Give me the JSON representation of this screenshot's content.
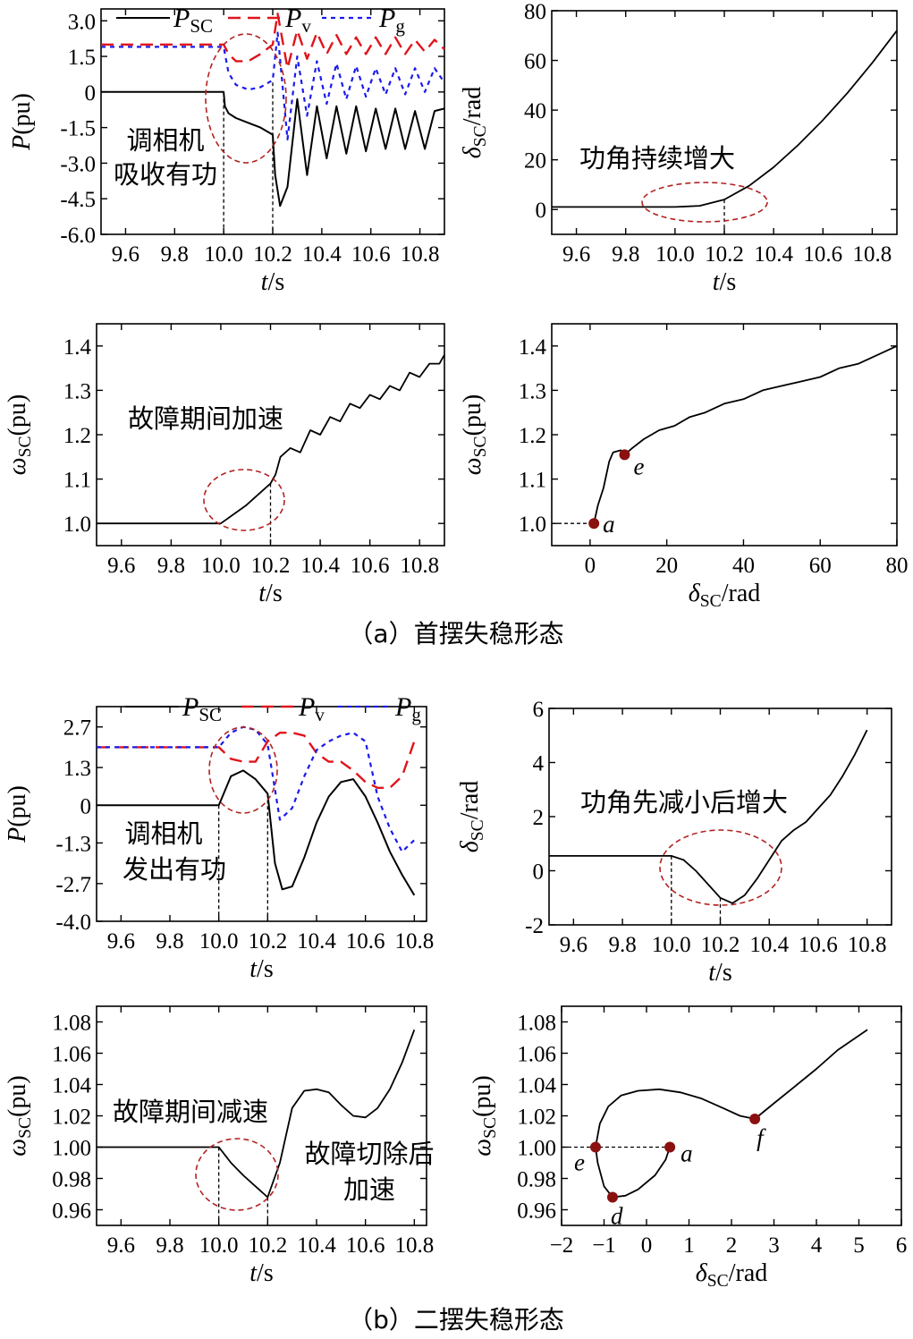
{
  "captions": {
    "a": "（a）首摆失稳形态",
    "b": "（b）二摆失稳形态"
  },
  "colors": {
    "psc": "#000000",
    "pv": "#e0141c",
    "pg": "#1a1aee",
    "marker": "#8b1010",
    "ellipse": "#b22222"
  },
  "legend": {
    "psc": "P_SC",
    "pv": "P_v",
    "pg": "P_g"
  },
  "chart_data": [
    {
      "id": "a1",
      "type": "line",
      "xlabel": "t/s",
      "ylabel": "P(pu)",
      "xlim": [
        9.5,
        10.9
      ],
      "ylim": [
        -6.0,
        3.5
      ],
      "xticks": [
        9.6,
        9.8,
        10.0,
        10.2,
        10.4,
        10.6,
        10.8
      ],
      "yticks": [
        3.0,
        1.5,
        0,
        -1.5,
        -3.0,
        -4.5,
        -6.0
      ],
      "yticklabels": [
        "3.0",
        "1.5",
        "0",
        "-1.5",
        "-3.0",
        "-4.5",
        "-6.0"
      ],
      "annotations": [
        "调相机",
        "吸收有功"
      ],
      "series": [
        {
          "name": "P_SC",
          "x": [
            9.5,
            10.0,
            10.005,
            10.02,
            10.05,
            10.1,
            10.15,
            10.2,
            10.21,
            10.23,
            10.26,
            10.3,
            10.34,
            10.38,
            10.42,
            10.46,
            10.5,
            10.54,
            10.58,
            10.62,
            10.66,
            10.7,
            10.74,
            10.78,
            10.82,
            10.86,
            10.9
          ],
          "y": [
            0,
            0,
            -0.6,
            -0.9,
            -1.1,
            -1.3,
            -1.5,
            -1.8,
            -3.5,
            -4.8,
            -4.0,
            -0.3,
            -3.5,
            -0.6,
            -2.8,
            -0.6,
            -2.6,
            -0.6,
            -2.5,
            -0.7,
            -2.4,
            -0.7,
            -2.4,
            -0.8,
            -2.4,
            -0.8,
            -0.7
          ]
        },
        {
          "name": "P_v",
          "x": [
            9.5,
            10.0,
            10.02,
            10.05,
            10.1,
            10.15,
            10.2,
            10.22,
            10.26,
            10.3,
            10.34,
            10.38,
            10.42,
            10.46,
            10.5,
            10.54,
            10.58,
            10.62,
            10.66,
            10.7,
            10.74,
            10.78,
            10.82,
            10.86,
            10.9
          ],
          "y": [
            2.0,
            2.0,
            1.6,
            1.3,
            1.3,
            1.6,
            2.0,
            3.3,
            1.0,
            2.6,
            1.4,
            2.5,
            1.6,
            2.4,
            1.6,
            2.3,
            1.6,
            2.3,
            1.6,
            2.3,
            1.6,
            2.2,
            1.7,
            2.2,
            1.8
          ]
        },
        {
          "name": "P_g",
          "x": [
            9.5,
            10.0,
            10.02,
            10.05,
            10.1,
            10.15,
            10.2,
            10.22,
            10.26,
            10.3,
            10.34,
            10.38,
            10.42,
            10.46,
            10.5,
            10.54,
            10.58,
            10.62,
            10.66,
            10.7,
            10.74,
            10.78,
            10.82,
            10.86,
            10.9
          ],
          "y": [
            1.9,
            1.9,
            0.8,
            0.3,
            0.1,
            0.2,
            0.5,
            2.5,
            -2.0,
            1.5,
            -1.0,
            1.3,
            -0.5,
            1.2,
            -0.3,
            1.1,
            -0.2,
            1.0,
            -0.1,
            1.0,
            -0.1,
            1.0,
            0.0,
            1.0,
            0.4
          ]
        }
      ]
    },
    {
      "id": "a2",
      "type": "line",
      "xlabel": "t/s",
      "ylabel": "δSC/rad",
      "xlim": [
        9.5,
        10.9
      ],
      "ylim": [
        -10,
        80
      ],
      "xticks": [
        9.6,
        9.8,
        10.0,
        10.2,
        10.4,
        10.6,
        10.8
      ],
      "yticks": [
        0,
        20,
        40,
        60,
        80
      ],
      "yticklabels": [
        "0",
        "20",
        "40",
        "60",
        "80"
      ],
      "annotations": [
        "功角持续增大"
      ],
      "series": [
        {
          "name": "δSC",
          "x": [
            9.5,
            10.0,
            10.1,
            10.2,
            10.3,
            10.4,
            10.5,
            10.6,
            10.7,
            10.8,
            10.9
          ],
          "y": [
            1.0,
            1.0,
            1.5,
            4.0,
            9.5,
            17.0,
            26.0,
            36.0,
            47.0,
            59.0,
            72.0
          ]
        }
      ]
    },
    {
      "id": "a3",
      "type": "line",
      "xlabel": "t/s",
      "ylabel": "ωSC(pu)",
      "xlim": [
        9.5,
        10.9
      ],
      "ylim": [
        0.95,
        1.45
      ],
      "xticks": [
        9.6,
        9.8,
        10.0,
        10.2,
        10.4,
        10.6,
        10.8
      ],
      "yticks": [
        1.0,
        1.1,
        1.2,
        1.3,
        1.4
      ],
      "yticklabels": [
        "1.0",
        "1.1",
        "1.2",
        "1.3",
        "1.4"
      ],
      "annotations": [
        "故障期间加速"
      ],
      "series": [
        {
          "name": "ωSC",
          "x": [
            9.5,
            10.0,
            10.1,
            10.2,
            10.22,
            10.24,
            10.28,
            10.32,
            10.36,
            10.4,
            10.44,
            10.48,
            10.52,
            10.56,
            10.6,
            10.64,
            10.68,
            10.72,
            10.76,
            10.8,
            10.84,
            10.88,
            10.9
          ],
          "y": [
            1.0,
            1.0,
            1.04,
            1.09,
            1.11,
            1.15,
            1.17,
            1.16,
            1.21,
            1.2,
            1.24,
            1.23,
            1.27,
            1.26,
            1.29,
            1.28,
            1.31,
            1.3,
            1.34,
            1.33,
            1.36,
            1.36,
            1.38
          ]
        }
      ]
    },
    {
      "id": "a4",
      "type": "line",
      "xlabel": "δSC/rad",
      "ylabel": "ωSC(pu)",
      "xlim": [
        -10,
        80
      ],
      "ylim": [
        0.95,
        1.45
      ],
      "xticks": [
        0,
        20,
        40,
        60,
        80
      ],
      "yticks": [
        1.0,
        1.1,
        1.2,
        1.3,
        1.4
      ],
      "yticklabels": [
        "1.0",
        "1.1",
        "1.2",
        "1.3",
        "1.4"
      ],
      "points": [
        {
          "label": "a",
          "x": 1.0,
          "y": 1.0
        },
        {
          "label": "e",
          "x": 9.0,
          "y": 1.155
        }
      ],
      "series": [
        {
          "name": "ωSC-δSC",
          "x": [
            1.0,
            2.0,
            3.5,
            5.0,
            6.0,
            8.0,
            9.0,
            11.0,
            14.0,
            18.0,
            22.0,
            26.0,
            30.0,
            35.0,
            40.0,
            45.0,
            50.0,
            55.0,
            60.0,
            65.0,
            70.0,
            75.0,
            80.0
          ],
          "y": [
            1.0,
            1.04,
            1.08,
            1.14,
            1.16,
            1.165,
            1.155,
            1.17,
            1.19,
            1.21,
            1.22,
            1.24,
            1.25,
            1.27,
            1.28,
            1.3,
            1.31,
            1.32,
            1.33,
            1.35,
            1.36,
            1.38,
            1.4
          ]
        }
      ]
    },
    {
      "id": "b1",
      "type": "line",
      "xlabel": "t/s",
      "ylabel": "P(pu)",
      "xlim": [
        9.5,
        10.85
      ],
      "ylim": [
        -4.0,
        3.4
      ],
      "xticks": [
        9.6,
        9.8,
        10.0,
        10.2,
        10.4,
        10.6,
        10.8
      ],
      "yticks": [
        2.7,
        1.3,
        0,
        -1.3,
        -2.7,
        -4.0
      ],
      "yticklabels": [
        "2.7",
        "1.3",
        "0",
        "-1.3",
        "-2.7",
        "-4.0"
      ],
      "annotations": [
        "调相机",
        "发出有功"
      ],
      "series": [
        {
          "name": "P_SC",
          "x": [
            9.5,
            10.0,
            10.05,
            10.1,
            10.15,
            10.2,
            10.23,
            10.26,
            10.3,
            10.35,
            10.4,
            10.45,
            10.5,
            10.55,
            10.6,
            10.65,
            10.7,
            10.75,
            10.8
          ],
          "y": [
            0,
            0,
            1.0,
            1.2,
            0.9,
            0.4,
            -2.0,
            -2.9,
            -2.8,
            -1.8,
            -0.6,
            0.3,
            0.8,
            0.9,
            0.3,
            -0.6,
            -1.6,
            -2.4,
            -3.1
          ]
        },
        {
          "name": "P_v",
          "x": [
            9.5,
            10.0,
            10.05,
            10.1,
            10.15,
            10.2,
            10.25,
            10.3,
            10.35,
            10.4,
            10.45,
            10.5,
            10.55,
            10.6,
            10.65,
            10.7,
            10.75,
            10.8
          ],
          "y": [
            2.0,
            2.0,
            1.6,
            1.5,
            1.5,
            2.2,
            2.5,
            2.5,
            2.4,
            1.8,
            1.5,
            1.5,
            1.2,
            0.8,
            0.6,
            0.6,
            1.0,
            2.2
          ]
        },
        {
          "name": "P_g",
          "x": [
            9.5,
            10.0,
            10.05,
            10.1,
            10.15,
            10.2,
            10.25,
            10.3,
            10.35,
            10.4,
            10.45,
            10.5,
            10.55,
            10.6,
            10.65,
            10.7,
            10.75,
            10.8
          ],
          "y": [
            2.0,
            2.0,
            2.5,
            2.7,
            2.6,
            2.1,
            -0.5,
            -0.1,
            1.0,
            1.9,
            2.2,
            2.4,
            2.5,
            2.2,
            0.3,
            -0.8,
            -1.6,
            -1.2
          ]
        }
      ]
    },
    {
      "id": "b2",
      "type": "line",
      "xlabel": "t/s",
      "ylabel": "δSC/rad",
      "xlim": [
        9.5,
        10.9
      ],
      "ylim": [
        -2,
        6
      ],
      "xticks": [
        9.6,
        9.8,
        10.0,
        10.2,
        10.4,
        10.6,
        10.8
      ],
      "yticks": [
        6,
        4,
        2,
        0,
        -2
      ],
      "yticklabels": [
        "6",
        "4",
        "2",
        "0",
        "-2"
      ],
      "annotations": [
        "功角先减小后增大"
      ],
      "series": [
        {
          "name": "δSC",
          "x": [
            9.5,
            10.0,
            10.05,
            10.1,
            10.15,
            10.2,
            10.25,
            10.3,
            10.35,
            10.4,
            10.45,
            10.5,
            10.55,
            10.6,
            10.65,
            10.7,
            10.75,
            10.8
          ],
          "y": [
            0.55,
            0.55,
            0.4,
            0.0,
            -0.5,
            -1.0,
            -1.2,
            -0.9,
            -0.3,
            0.4,
            1.1,
            1.5,
            1.8,
            2.3,
            2.8,
            3.5,
            4.3,
            5.2
          ]
        }
      ]
    },
    {
      "id": "b3",
      "type": "line",
      "xlabel": "t/s",
      "ylabel": "ωSC(pu)",
      "xlim": [
        9.5,
        10.85
      ],
      "ylim": [
        0.95,
        1.09
      ],
      "xticks": [
        9.6,
        9.8,
        10.0,
        10.2,
        10.4,
        10.6,
        10.8
      ],
      "yticks": [
        0.96,
        0.98,
        1.0,
        1.02,
        1.04,
        1.06,
        1.08
      ],
      "yticklabels": [
        "0.96",
        "0.98",
        "1.00",
        "1.02",
        "1.04",
        "1.06",
        "1.08"
      ],
      "annotations": [
        "故障期间减速",
        "故障切除后",
        "加速"
      ],
      "series": [
        {
          "name": "ωSC",
          "x": [
            9.5,
            10.0,
            10.05,
            10.1,
            10.15,
            10.2,
            10.25,
            10.3,
            10.35,
            10.4,
            10.45,
            10.5,
            10.55,
            10.6,
            10.65,
            10.7,
            10.75,
            10.8
          ],
          "y": [
            1.0,
            1.0,
            0.99,
            0.982,
            0.975,
            0.968,
            0.99,
            1.025,
            1.036,
            1.037,
            1.035,
            1.027,
            1.02,
            1.019,
            1.025,
            1.037,
            1.054,
            1.075
          ]
        }
      ]
    },
    {
      "id": "b4",
      "type": "line",
      "xlabel": "δSC/rad",
      "ylabel": "ωSC(pu)",
      "xlim": [
        -2,
        6
      ],
      "ylim": [
        0.95,
        1.09
      ],
      "xticks": [
        -2,
        -1,
        0,
        1,
        2,
        3,
        4,
        5,
        6
      ],
      "yticks": [
        0.96,
        0.98,
        1.0,
        1.02,
        1.04,
        1.06,
        1.08
      ],
      "yticklabels": [
        "0.96",
        "0.98",
        "1.00",
        "1.02",
        "1.04",
        "1.06",
        "1.08"
      ],
      "points": [
        {
          "label": "a",
          "x": 0.55,
          "y": 1.0
        },
        {
          "label": "e",
          "x": -1.2,
          "y": 1.0
        },
        {
          "label": "d",
          "x": -0.8,
          "y": 0.968
        },
        {
          "label": "f",
          "x": 2.55,
          "y": 1.018
        }
      ],
      "series": [
        {
          "name": "ωSC-δSC",
          "x": [
            0.55,
            0.45,
            0.2,
            -0.2,
            -0.5,
            -0.8,
            -1.0,
            -1.15,
            -1.2,
            -1.1,
            -0.9,
            -0.6,
            -0.2,
            0.3,
            0.8,
            1.3,
            1.8,
            2.2,
            2.55,
            3.0,
            3.5,
            4.0,
            4.5,
            5.2
          ],
          "y": [
            1.0,
            0.992,
            0.982,
            0.973,
            0.969,
            0.968,
            0.975,
            0.99,
            1.0,
            1.015,
            1.026,
            1.033,
            1.036,
            1.037,
            1.035,
            1.031,
            1.025,
            1.02,
            1.018,
            1.028,
            1.039,
            1.05,
            1.062,
            1.075
          ]
        }
      ]
    }
  ]
}
